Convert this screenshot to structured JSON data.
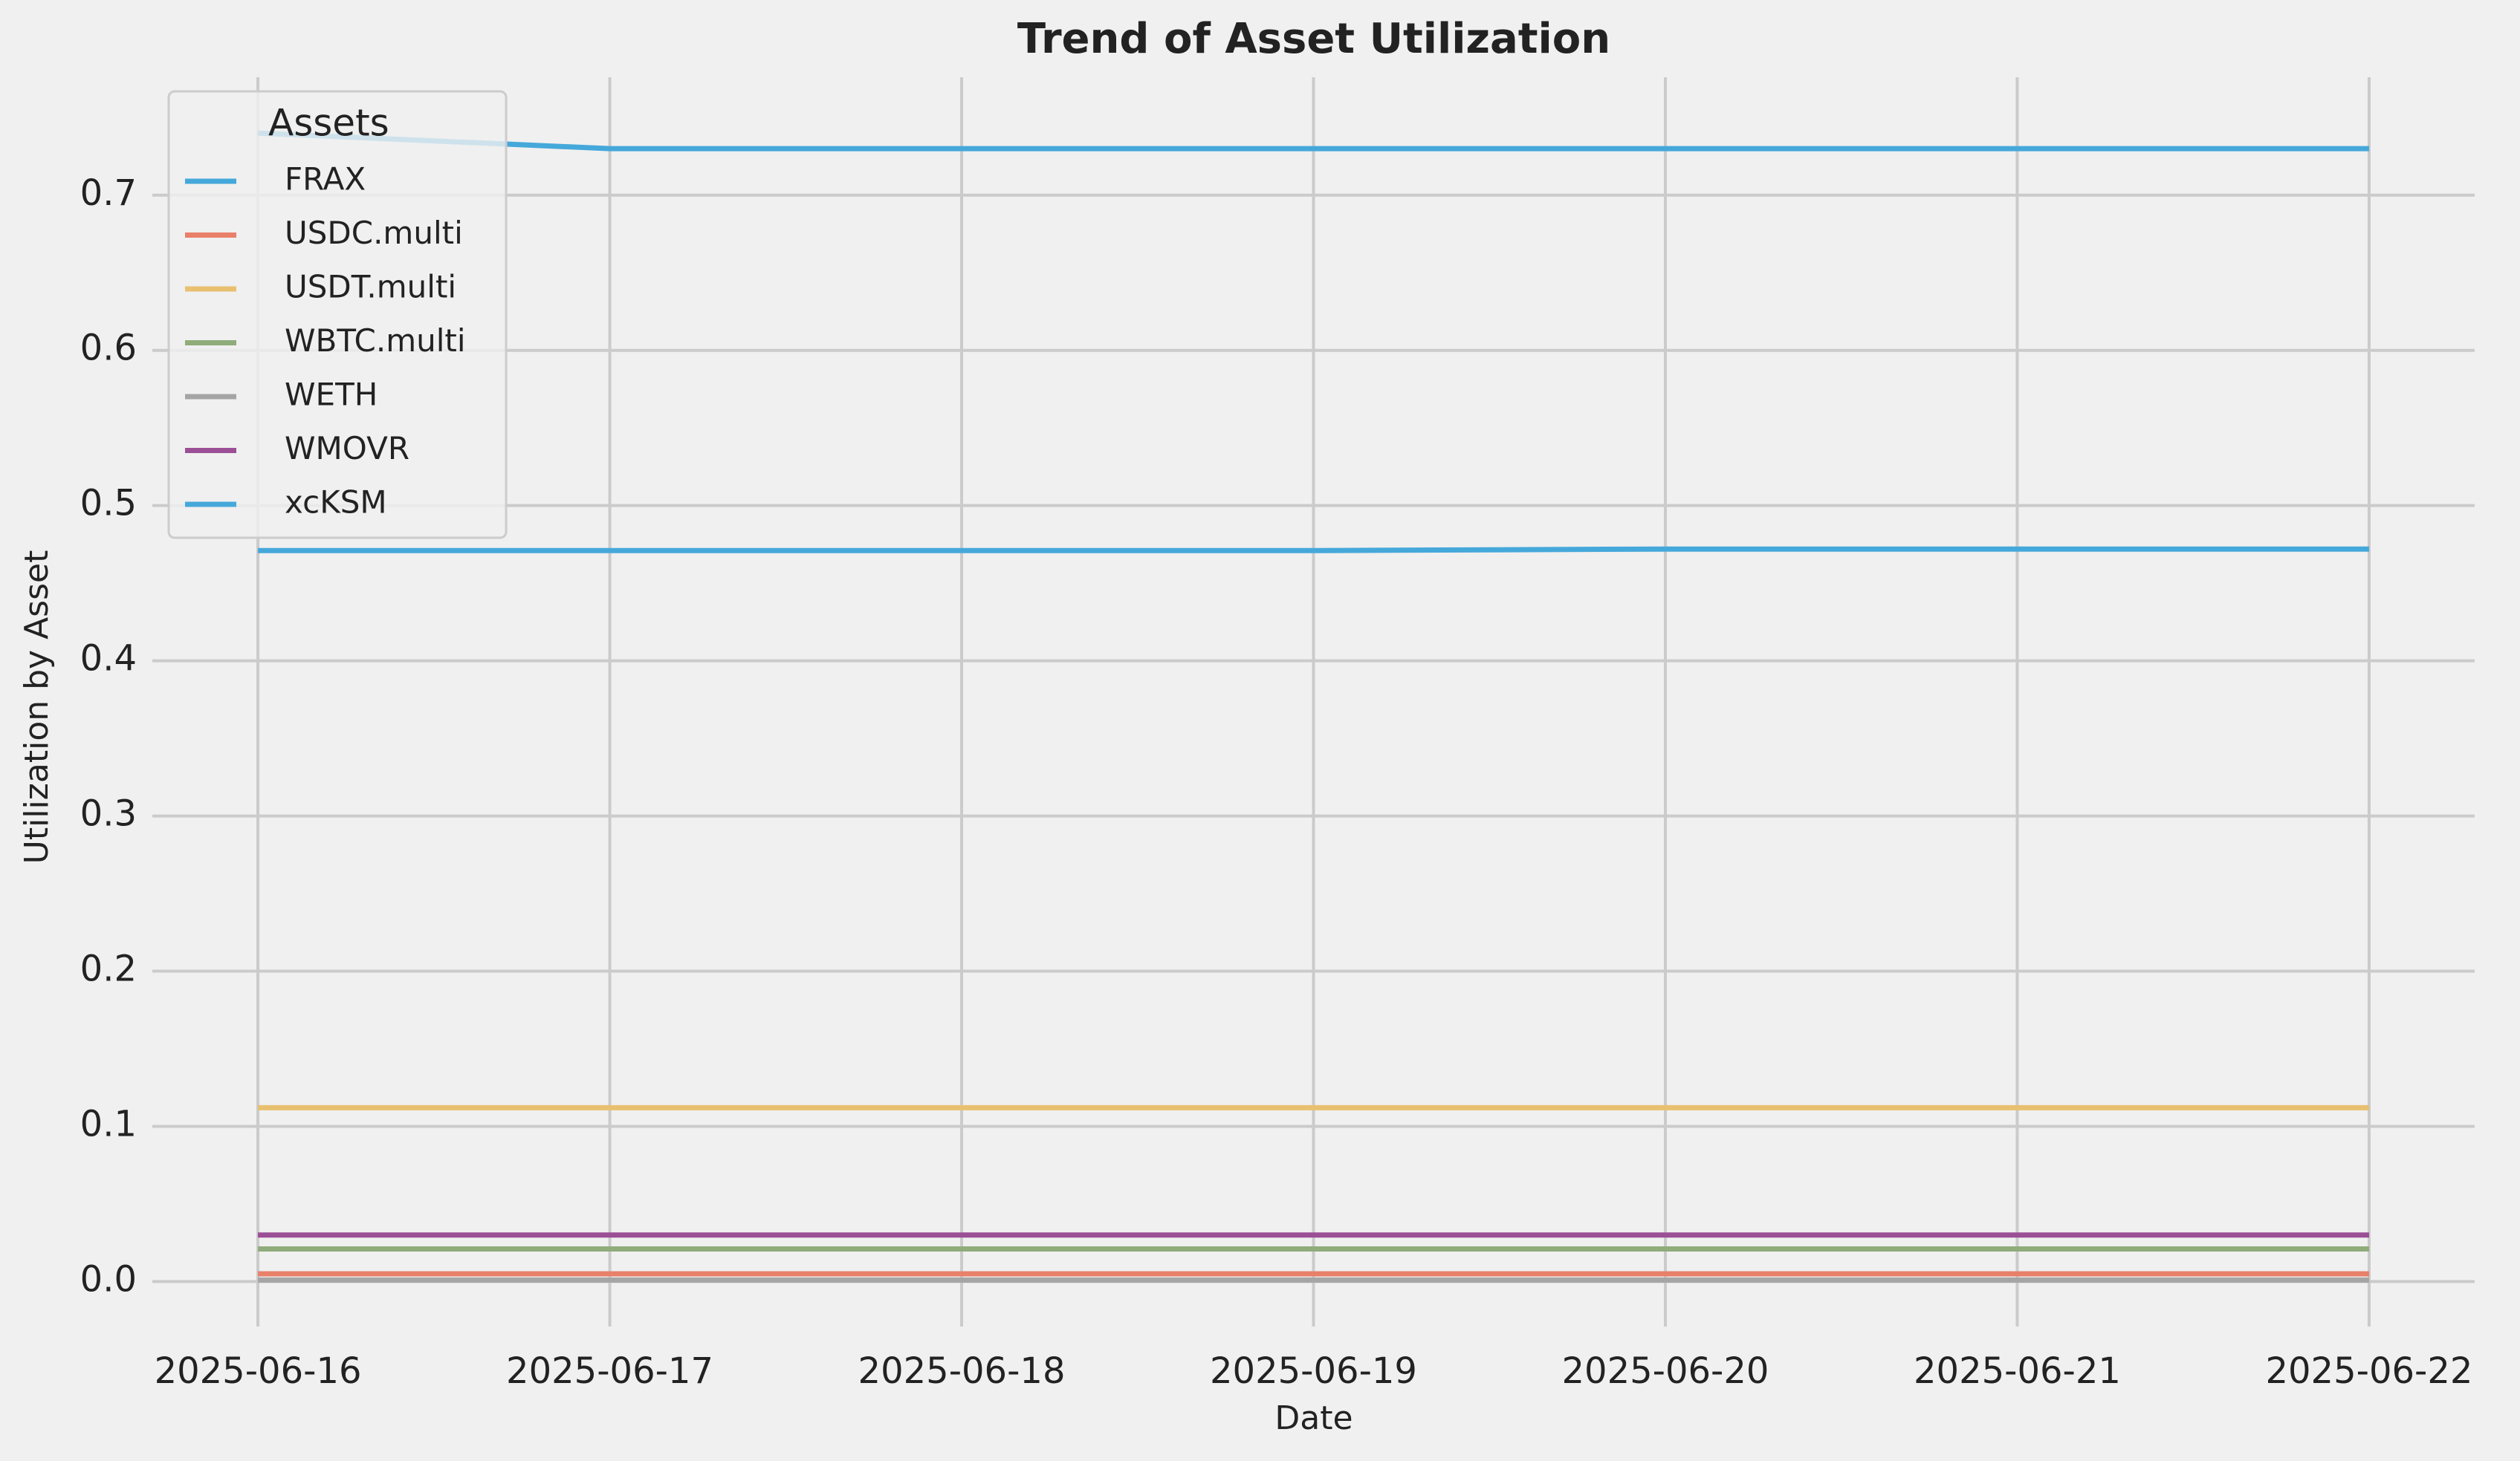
{
  "chart_data": {
    "type": "line",
    "title": "Trend of Asset Utilization",
    "x_label": "Date",
    "y_label": "Utilization by Asset",
    "x": [
      "2025-06-16",
      "2025-06-17",
      "2025-06-18",
      "2025-06-19",
      "2025-06-20",
      "2025-06-21",
      "2025-06-22"
    ],
    "xticks": [
      "2025-06-16",
      "2025-06-17",
      "2025-06-18",
      "2025-06-19",
      "2025-06-20",
      "2025-06-21",
      "2025-06-22"
    ],
    "series": [
      {
        "name": "FRAX",
        "color": "#45a8da",
        "values": [
          0.74,
          0.73,
          0.73,
          0.73,
          0.73,
          0.73,
          0.73
        ]
      },
      {
        "name": "USDC.multi",
        "color": "#e8806a",
        "values": [
          0.005,
          0.005,
          0.005,
          0.005,
          0.005,
          0.005,
          0.005
        ]
      },
      {
        "name": "USDT.multi",
        "color": "#e8c070",
        "values": [
          0.112,
          0.112,
          0.112,
          0.112,
          0.112,
          0.112,
          0.112
        ]
      },
      {
        "name": "WBTC.multi",
        "color": "#8fac7a",
        "values": [
          0.021,
          0.021,
          0.021,
          0.021,
          0.021,
          0.021,
          0.021
        ]
      },
      {
        "name": "WETH",
        "color": "#a5a5a5",
        "values": [
          0.001,
          0.001,
          0.001,
          0.001,
          0.001,
          0.001,
          0.001
        ]
      },
      {
        "name": "WMOVR",
        "color": "#9b4f96",
        "values": [
          0.03,
          0.03,
          0.03,
          0.03,
          0.03,
          0.03,
          0.03
        ]
      },
      {
        "name": "xcKSM",
        "color": "#45a8da",
        "values": [
          0.471,
          0.471,
          0.471,
          0.471,
          0.472,
          0.472,
          0.472
        ]
      }
    ],
    "ylim": [
      -0.029,
      0.776
    ],
    "yticks": [
      {
        "value": 0,
        "label": "0.0"
      },
      0.1,
      0.2,
      0.3,
      0.4,
      0.5,
      0.6,
      0.7
    ],
    "grid": true,
    "legend": "upper left",
    "legend_title": "Assets"
  }
}
